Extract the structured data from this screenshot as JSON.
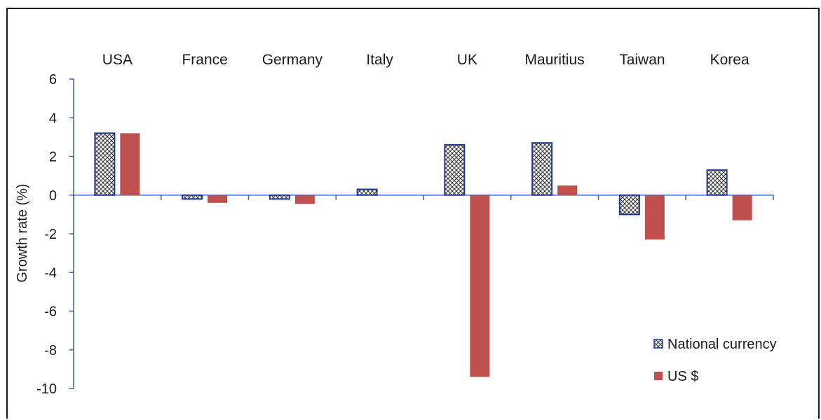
{
  "chart_data": {
    "type": "bar",
    "title": "",
    "xlabel": "",
    "ylabel": "Growth rate (%)",
    "ylim": [
      -10,
      6
    ],
    "yticks": [
      6,
      4,
      2,
      0,
      -2,
      -4,
      -6,
      -8,
      -10
    ],
    "categories": [
      "USA",
      "France",
      "Germany",
      "Italy",
      "UK",
      "Mauritius",
      "Taiwan",
      "Korea"
    ],
    "series": [
      {
        "name": "National currency",
        "pattern": "crosshatch",
        "color": "#1f3a8a",
        "values": [
          3.2,
          -0.2,
          -0.2,
          0.3,
          2.6,
          2.7,
          -1.0,
          1.3
        ]
      },
      {
        "name": "US $",
        "color": "#c0504d",
        "values": [
          3.2,
          -0.4,
          -0.45,
          0.0,
          -9.4,
          0.5,
          -2.3,
          -1.3
        ]
      }
    ],
    "legend_position": "bottom-right",
    "grid": false
  }
}
